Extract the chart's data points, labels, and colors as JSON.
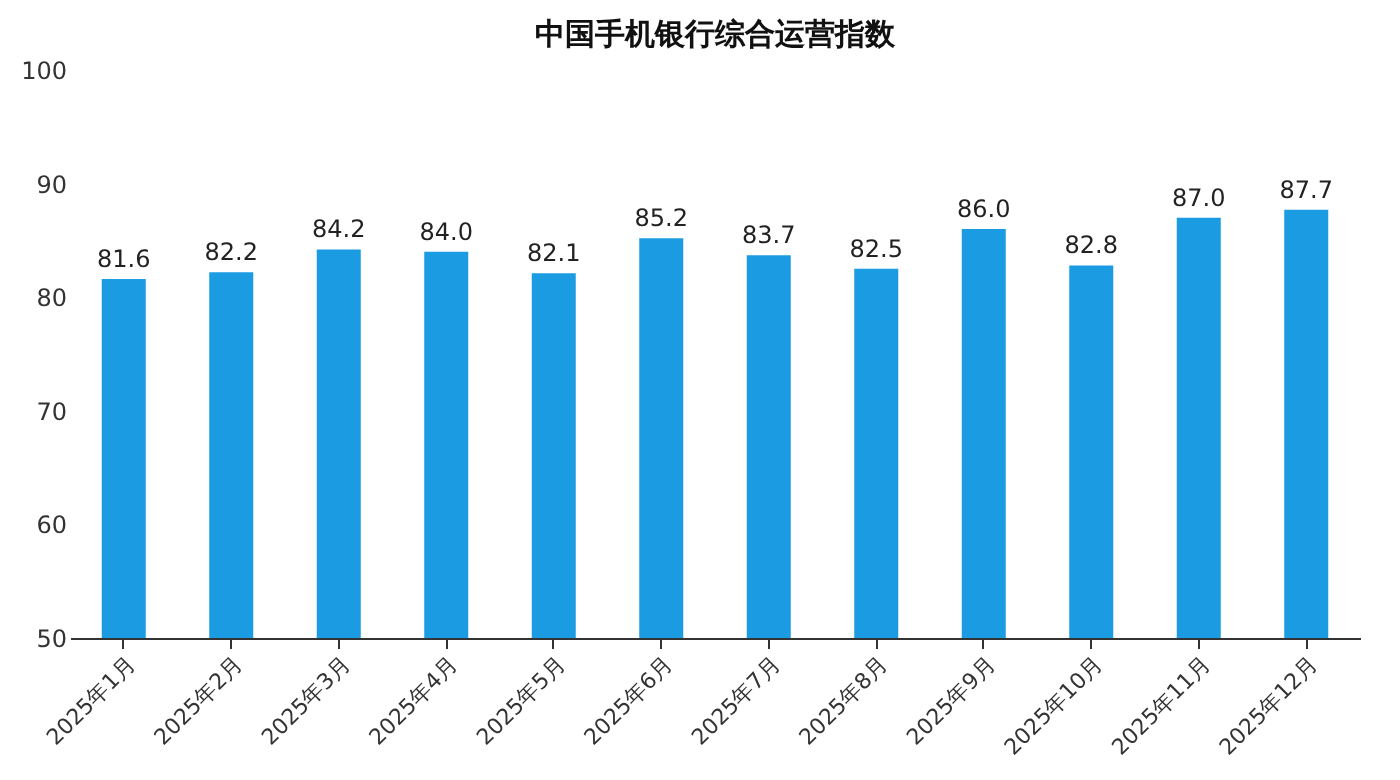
{
  "chart_data": {
    "type": "bar",
    "title": "中国手机银行综合运营指数",
    "categories": [
      "2025年1月",
      "2025年2月",
      "2025年3月",
      "2025年4月",
      "2025年5月",
      "2025年6月",
      "2025年7月",
      "2025年8月",
      "2025年9月",
      "2025年10月",
      "2025年11月",
      "2025年12月"
    ],
    "values": [
      81.6,
      82.2,
      84.2,
      84.0,
      82.1,
      85.2,
      83.7,
      82.5,
      86.0,
      82.8,
      87.0,
      87.7
    ],
    "value_labels": [
      "81.6",
      "82.2",
      "84.2",
      "84.0",
      "82.1",
      "85.2",
      "83.7",
      "82.5",
      "86.0",
      "82.8",
      "87.0",
      "87.7"
    ],
    "color": "#1a9be2",
    "ylim": [
      50,
      100
    ],
    "yticks": [
      50,
      60,
      70,
      80,
      90,
      100
    ],
    "grid": false
  }
}
